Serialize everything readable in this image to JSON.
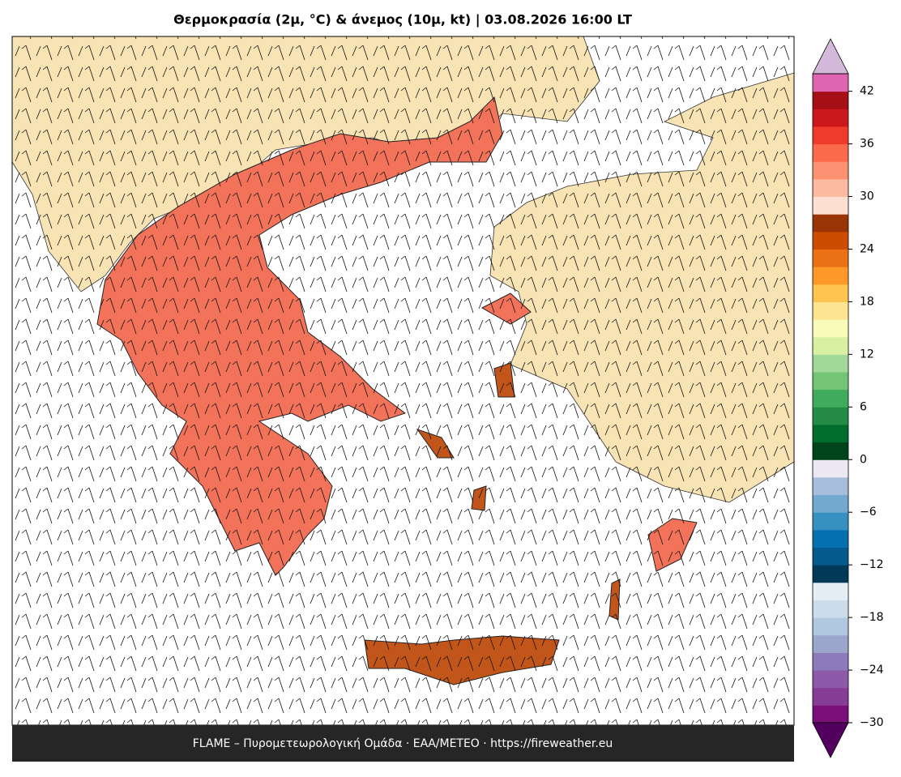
{
  "title": "Θερμοκρασία (2μ, °C) & άνεμος (10μ, kt)  |  03.08.2026 16:00 LT",
  "footer": "FLAME – Πυρομετεωρολογική Ομάδα · ΕΑΑ/ΜΕΤΕΟ · https://fireweather.eu",
  "colorbar": {
    "lim": [
      -30,
      44
    ],
    "ticks": [
      {
        "value": -30,
        "label": "−30"
      },
      {
        "value": -24,
        "label": "−24"
      },
      {
        "value": -18,
        "label": "−18"
      },
      {
        "value": -12,
        "label": "−12"
      },
      {
        "value": -6,
        "label": "−6"
      },
      0,
      6,
      12,
      18,
      24,
      30,
      36,
      42
    ],
    "colors": [
      "#7a0f7a",
      "#873c95",
      "#8c5aa8",
      "#8c7bbb",
      "#9aa6cc",
      "#b0c8e0",
      "#cbdcea",
      "#e6eef5",
      "#023858",
      "#045a8d",
      "#0570b0",
      "#3690c0",
      "#74a9cf",
      "#a6bddb",
      "#ece7f2",
      "#00441b",
      "#006d2c",
      "#238b45",
      "#41ab5d",
      "#74c476",
      "#a1d99b",
      "#d9f0a3",
      "#f7fcb9",
      "#fee391",
      "#fec44f",
      "#fe9929",
      "#ec7014",
      "#cc4c02",
      "#993404",
      "#fee0d2",
      "#fcbba1",
      "#fc9272",
      "#fb6a4a",
      "#ef3b2c",
      "#cb181d",
      "#a50f15",
      "#df65b0"
    ],
    "under_color": "#54005f",
    "over_color": "#d4b9da"
  }
}
